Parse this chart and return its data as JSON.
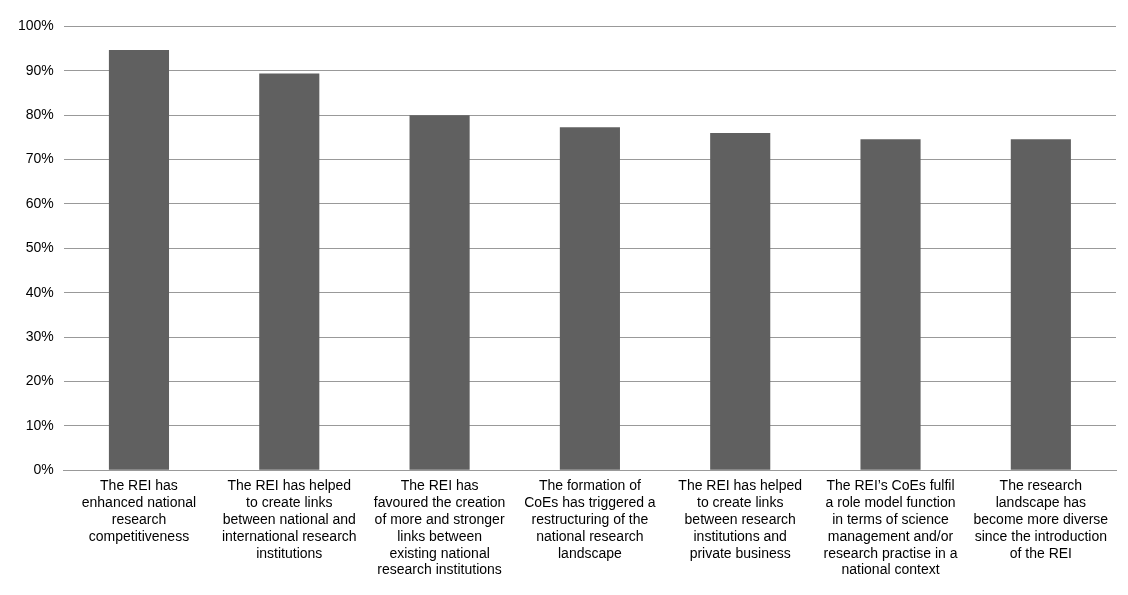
{
  "chart_data": {
    "type": "bar",
    "categories": [
      "The REI has enhanced national research competitiveness",
      "The REI has helped to create links between national and international research institutions",
      "The REI has favoured the creation of more and stronger links between existing national research institutions",
      "The formation of CoEs has triggered a restructuring of the national research landscape",
      "The REI has helped to create links between research institutions and private business",
      "The REI’s CoEs fulfil a role model function in terms of science management and/or research practise in a national context",
      "The research landscape has become more diverse since the introduction of the REI"
    ],
    "values": [
      94.7,
      89.4,
      80,
      77.3,
      76,
      74.6,
      74.6
    ],
    "color": "#606060",
    "ylim": [
      0,
      100
    ],
    "yticks": [
      {
        "value": 0,
        "label": "0%"
      },
      {
        "value": 10,
        "label": "10%"
      },
      {
        "value": 20,
        "label": "20%"
      },
      {
        "value": 30,
        "label": "30%"
      },
      {
        "value": 40,
        "label": "40%"
      },
      {
        "value": 50,
        "label": "50%"
      },
      {
        "value": 60,
        "label": "60%"
      },
      {
        "value": 70,
        "label": "70%"
      },
      {
        "value": 80,
        "label": "80%"
      },
      {
        "value": 90,
        "label": "90%"
      },
      {
        "value": 100,
        "label": "100%"
      }
    ],
    "grid": "y",
    "legend": false
  }
}
